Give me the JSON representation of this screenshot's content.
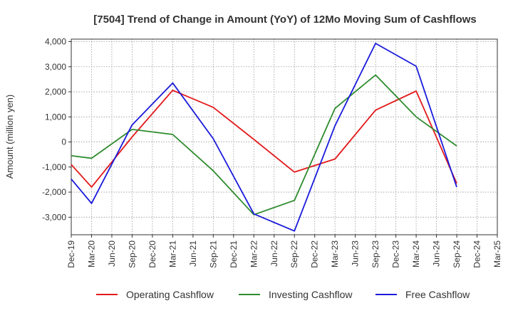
{
  "chart_data": {
    "type": "line",
    "title": "[7504]  Trend of Change in Amount (YoY) of 12Mo Moving Sum of Cashflows",
    "xlabel": "",
    "ylabel": "Amount (million yen)",
    "ylim": [
      -3700,
      4100
    ],
    "yticks": [
      4000,
      3000,
      2000,
      1000,
      0,
      -1000,
      -2000,
      -3000
    ],
    "ytick_labels": [
      "4,000",
      "3,000",
      "2,000",
      "1,000",
      "0",
      "-1,000",
      "-2,000",
      "-3,000"
    ],
    "categories": [
      "Dec-19",
      "Mar-20",
      "Jun-20",
      "Sep-20",
      "Dec-20",
      "Mar-21",
      "Jun-21",
      "Sep-21",
      "Dec-21",
      "Mar-22",
      "Jun-22",
      "Sep-22",
      "Dec-22",
      "Mar-23",
      "Jun-23",
      "Sep-23",
      "Dec-23",
      "Mar-24",
      "Jun-24",
      "Sep-24",
      "Dec-24",
      "Mar-25"
    ],
    "legend_position": "bottom",
    "grid": true,
    "series": [
      {
        "name": "Operating Cashflow",
        "color": "#e31a1c",
        "values": [
          -900,
          -1800,
          null,
          200,
          null,
          2060,
          null,
          1380,
          null,
          100,
          null,
          -1200,
          null,
          -680,
          null,
          1270,
          null,
          2030,
          null,
          -1650,
          null,
          null
        ]
      },
      {
        "name": "Investing Cashflow",
        "color": "#2e8b2e",
        "values": [
          -550,
          -650,
          null,
          500,
          null,
          300,
          null,
          -1150,
          null,
          -2900,
          null,
          -2330,
          null,
          1340,
          null,
          2670,
          null,
          1000,
          null,
          -160,
          null,
          null
        ]
      },
      {
        "name": "Free Cashflow",
        "color": "#1a1adb",
        "values": [
          -1480,
          -2450,
          null,
          680,
          null,
          2350,
          null,
          130,
          null,
          -2870,
          null,
          -3550,
          null,
          650,
          null,
          3930,
          null,
          3020,
          null,
          -1800,
          null,
          null
        ]
      }
    ]
  }
}
